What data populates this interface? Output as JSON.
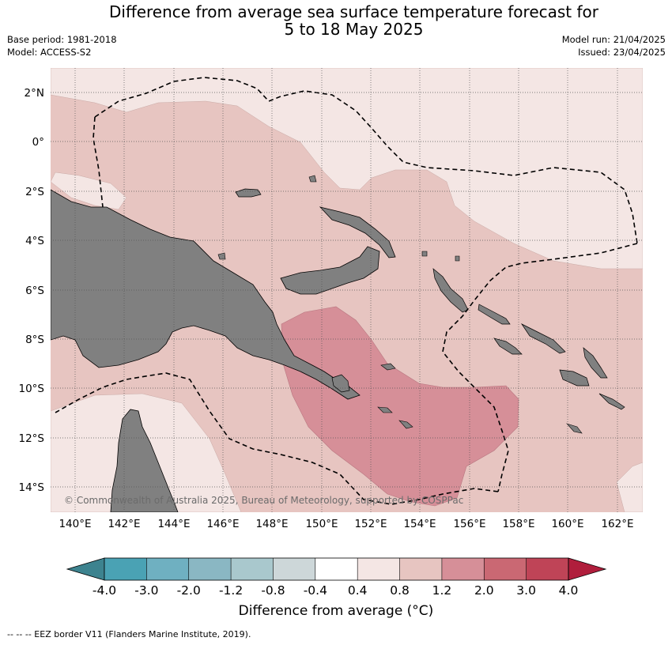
{
  "title_line1": "Difference from average sea surface temperature forecast for",
  "title_line2": "5 to 18 May 2025",
  "base_period": "Base period: 1981-2018",
  "model": "Model: ACCESS-S2",
  "model_run": "Model run: 21/04/2025",
  "issued": "Issued: 23/04/2025",
  "watermark": "© Commonwealth of Australia 2025, Bureau of Meteorology, supported by COSPPac",
  "colorbar": {
    "label": "Difference from average (°C)",
    "ticks": [
      "-4.0",
      "-3.0",
      "-2.0",
      "-1.2",
      "-0.8",
      "-0.4",
      "0.4",
      "0.8",
      "1.2",
      "2.0",
      "3.0",
      "4.0"
    ],
    "colors": [
      "#3d838f",
      "#4aa2b4",
      "#6fb0c1",
      "#8ab7c3",
      "#a9c8cd",
      "#cdd7d9",
      "#ffffff",
      "#f4e6e4",
      "#e7c5c1",
      "#d68f98",
      "#ca6873",
      "#bf4457",
      "#b01e3c"
    ]
  },
  "footnote": "--  --  -- EEZ border V11 (Flanders Marine Institute, 2019).",
  "map": {
    "lon_labels": [
      "140°E",
      "142°E",
      "144°E",
      "146°E",
      "148°E",
      "150°E",
      "152°E",
      "154°E",
      "156°E",
      "158°E",
      "160°E",
      "162°E"
    ],
    "lat_labels": [
      "2°N",
      "0°",
      "2°S",
      "4°S",
      "6°S",
      "8°S",
      "10°S",
      "12°S",
      "14°S"
    ],
    "colors": {
      "level_0_4_0_8": "#f4e6e4",
      "level_0_8_1_2": "#e7c5c1",
      "level_1_2_2_0": "#d68f98",
      "land": "#808080"
    }
  }
}
